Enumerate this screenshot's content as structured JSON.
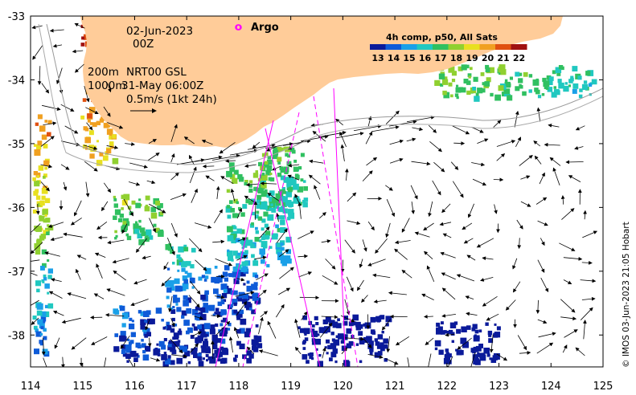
{
  "map": {
    "date": "02-Jun-2023",
    "time": "00Z",
    "depth_shallow": "200m",
    "depth_deep": "1000m",
    "product": "NRT00 GSL",
    "altimetry_time": "31-May 06:00Z",
    "scale_label": "0.5m/s (1kt 24h)",
    "legend_argo": "Argo",
    "colorbar_title": "4h comp, p50, All Sats",
    "colorbar_ticks": [
      "13",
      "14",
      "15",
      "16",
      "17",
      "18",
      "19",
      "20",
      "21",
      "22"
    ],
    "colorbar_colors": [
      "#0a1a9a",
      "#0e5bd8",
      "#1aa0e8",
      "#20c8c0",
      "#30c060",
      "#90d030",
      "#e8e020",
      "#f0a020",
      "#e05010",
      "#a01010"
    ],
    "credit": "© IMOS 03-Jun-2023 21:05 Hobart",
    "x_ticks": [
      "114",
      "115",
      "116",
      "117",
      "118",
      "119",
      "120",
      "121",
      "122",
      "123",
      "124",
      "125"
    ],
    "y_ticks": [
      "-33",
      "-34",
      "-35",
      "-36",
      "-37",
      "-38"
    ],
    "land_color": "#ffcc99",
    "argo_color": "#ff00ff"
  }
}
